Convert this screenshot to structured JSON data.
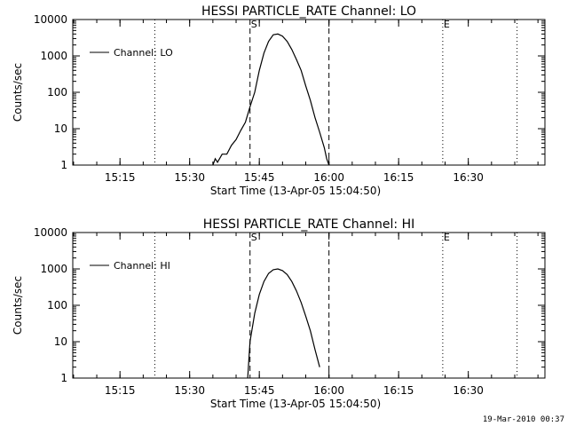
{
  "footer": {
    "timestamp": "19-Mar-2010 00:37"
  },
  "chart_data": [
    {
      "type": "line",
      "title": "HESSI PARTICLE_RATE Channel: LO",
      "xlabel": "Start Time (13-Apr-05 15:04:50)",
      "ylabel": "Counts/sec",
      "y_scale": "log",
      "ylim": [
        1,
        10000
      ],
      "y_ticks": [
        1,
        10,
        100,
        1000,
        10000
      ],
      "y_tick_labels": [
        "1",
        "10",
        "100",
        "1000",
        "10000"
      ],
      "xlim": [
        "15:04:50",
        "16:46:30"
      ],
      "x_ticks": [
        "15:15",
        "15:30",
        "15:45",
        "16:00",
        "16:15",
        "16:30"
      ],
      "legend": {
        "location": "top-left",
        "entries": [
          "Channel: LO"
        ]
      },
      "markers": [
        {
          "label": "S",
          "time": "15:43:00",
          "style": "dashed"
        },
        {
          "label": "",
          "time": "16:00:00",
          "style": "dashed"
        },
        {
          "label": "E",
          "time": "16:24:30",
          "style": "dotted"
        },
        {
          "label": "",
          "time": "15:22:30",
          "style": "dotted"
        },
        {
          "label": "",
          "time": "16:40:30",
          "style": "dotted"
        }
      ],
      "series": [
        {
          "name": "Channel: LO",
          "x": [
            "15:35:00",
            "15:35:30",
            "15:36:00",
            "15:37:00",
            "15:38:00",
            "15:39:00",
            "15:40:00",
            "15:41:00",
            "15:42:00",
            "15:43:00",
            "15:44:00",
            "15:45:00",
            "15:46:00",
            "15:47:00",
            "15:48:00",
            "15:49:00",
            "15:50:00",
            "15:51:00",
            "15:52:00",
            "15:53:00",
            "15:54:00",
            "15:55:00",
            "15:56:00",
            "15:57:00",
            "15:58:00",
            "15:59:00",
            "15:59:30",
            "16:00:00"
          ],
          "y": [
            1,
            1.5,
            1.2,
            2,
            2,
            3.5,
            5,
            9,
            15,
            40,
            100,
            400,
            1200,
            2500,
            3800,
            4000,
            3500,
            2500,
            1500,
            800,
            400,
            150,
            60,
            20,
            8,
            3,
            1.5,
            1
          ]
        }
      ]
    },
    {
      "type": "line",
      "title": "HESSI PARTICLE_RATE Channel: HI",
      "xlabel": "Start Time (13-Apr-05 15:04:50)",
      "ylabel": "Counts/sec",
      "y_scale": "log",
      "ylim": [
        1,
        10000
      ],
      "y_ticks": [
        1,
        10,
        100,
        1000,
        10000
      ],
      "y_tick_labels": [
        "1",
        "10",
        "100",
        "1000",
        "10000"
      ],
      "xlim": [
        "15:04:50",
        "16:46:30"
      ],
      "x_ticks": [
        "15:15",
        "15:30",
        "15:45",
        "16:00",
        "16:15",
        "16:30"
      ],
      "legend": {
        "location": "top-left",
        "entries": [
          "Channel: HI"
        ]
      },
      "markers": [
        {
          "label": "S",
          "time": "15:43:00",
          "style": "dashed"
        },
        {
          "label": "",
          "time": "16:00:00",
          "style": "dashed"
        },
        {
          "label": "E",
          "time": "16:24:30",
          "style": "dotted"
        },
        {
          "label": "",
          "time": "15:22:30",
          "style": "dotted"
        },
        {
          "label": "",
          "time": "16:40:30",
          "style": "dotted"
        }
      ],
      "series": [
        {
          "name": "Channel: HI",
          "x": [
            "15:42:30",
            "15:43:00",
            "15:44:00",
            "15:45:00",
            "15:46:00",
            "15:47:00",
            "15:48:00",
            "15:49:00",
            "15:50:00",
            "15:51:00",
            "15:52:00",
            "15:53:00",
            "15:54:00",
            "15:55:00",
            "15:56:00",
            "15:57:00",
            "15:58:00"
          ],
          "y": [
            1,
            10,
            60,
            200,
            450,
            750,
            950,
            1000,
            900,
            700,
            450,
            250,
            120,
            50,
            20,
            6,
            2
          ]
        }
      ]
    }
  ]
}
